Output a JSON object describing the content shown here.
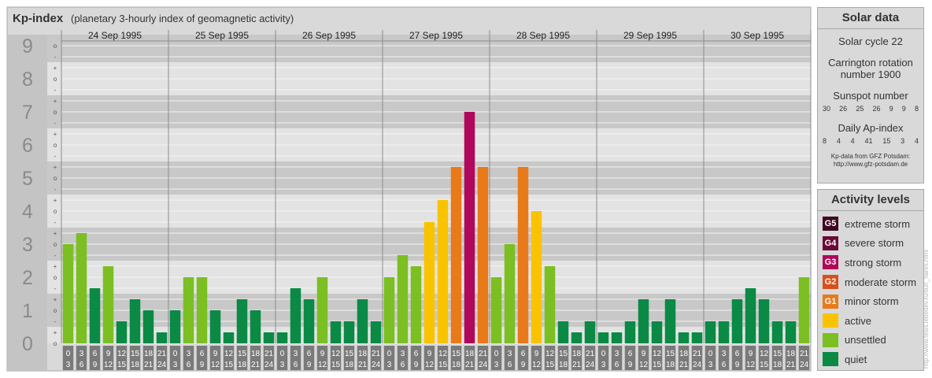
{
  "chart_data": {
    "type": "bar",
    "title": "Kp-index",
    "subtitle": "(planetary 3-hourly index of geomagnetic activity)",
    "days": [
      "24 Sep 1995",
      "25 Sep 1995",
      "26 Sep 1995",
      "27 Sep 1995",
      "28 Sep 1995",
      "29 Sep 1995",
      "30 Sep 1995"
    ],
    "interval_starts": [
      "0",
      "3",
      "6",
      "9",
      "12",
      "15",
      "18",
      "21"
    ],
    "interval_ends": [
      "3",
      "6",
      "9",
      "12",
      "15",
      "18",
      "21",
      "24"
    ],
    "values": [
      [
        3.0,
        3.333,
        1.667,
        2.333,
        0.667,
        1.333,
        1.0,
        0.333
      ],
      [
        1.0,
        2.0,
        2.0,
        1.0,
        0.333,
        1.333,
        1.0,
        0.333
      ],
      [
        0.333,
        1.667,
        1.333,
        2.0,
        0.667,
        0.667,
        1.333,
        0.667
      ],
      [
        2.0,
        2.667,
        2.333,
        3.667,
        4.333,
        5.333,
        7.0,
        5.333
      ],
      [
        2.0,
        3.0,
        5.333,
        4.0,
        2.333,
        0.667,
        0.333,
        0.667
      ],
      [
        0.333,
        0.333,
        0.667,
        1.333,
        0.667,
        1.333,
        0.333,
        0.333
      ],
      [
        0.667,
        0.667,
        1.333,
        1.667,
        1.333,
        0.667,
        0.667,
        2.0
      ]
    ],
    "ylim": [
      0,
      9
    ],
    "y_major_ticks": [
      "0",
      "1",
      "2",
      "3",
      "4",
      "5",
      "6",
      "7",
      "8",
      "9"
    ],
    "y_minor_ticks": [
      "o",
      "+",
      "-"
    ]
  },
  "colors": {
    "quiet": "#0a8a45",
    "unsettled": "#7bbf22",
    "active": "#f9c300",
    "minor_storm": "#e87a1a",
    "moderate_storm": "#d94f1c",
    "strong_storm": "#b0085a",
    "severe_storm": "#6a0a38",
    "extreme_storm": "#3d0a22"
  },
  "solar_data": {
    "heading": "Solar data",
    "solar_cycle": "Solar cycle 22",
    "carrington_line1": "Carrington rotation",
    "carrington_line2": "number 1900",
    "sunspot_label": "Sunspot number",
    "sunspot_values": [
      "30",
      "26",
      "25",
      "26",
      "9",
      "9",
      "8"
    ],
    "ap_label": "Daily Ap-index",
    "ap_values": [
      "8",
      "4",
      "4",
      "41",
      "15",
      "3",
      "4"
    ],
    "note_line1": "Kp-data from GFZ Potsdam:",
    "note_line2": "http://www.gfz-potsdam.de"
  },
  "activity_levels": {
    "heading": "Activity levels",
    "items": [
      {
        "badge": "G5",
        "label": "extreme storm",
        "color": "#3d0a22"
      },
      {
        "badge": "G4",
        "label": "severe storm",
        "color": "#6a0a38"
      },
      {
        "badge": "G3",
        "label": "strong storm",
        "color": "#b0085a"
      },
      {
        "badge": "G2",
        "label": "moderate storm",
        "color": "#d94f1c"
      },
      {
        "badge": "G1",
        "label": "minor storm",
        "color": "#e87a1a"
      },
      {
        "badge": "",
        "label": "active",
        "color": "#f9c300"
      },
      {
        "badge": "",
        "label": "unsettled",
        "color": "#7bbf22"
      },
      {
        "badge": "",
        "label": "quiet",
        "color": "#0a8a45"
      }
    ]
  },
  "credit": "http://www.tesis.lebedev.ru/sun_flares.html"
}
